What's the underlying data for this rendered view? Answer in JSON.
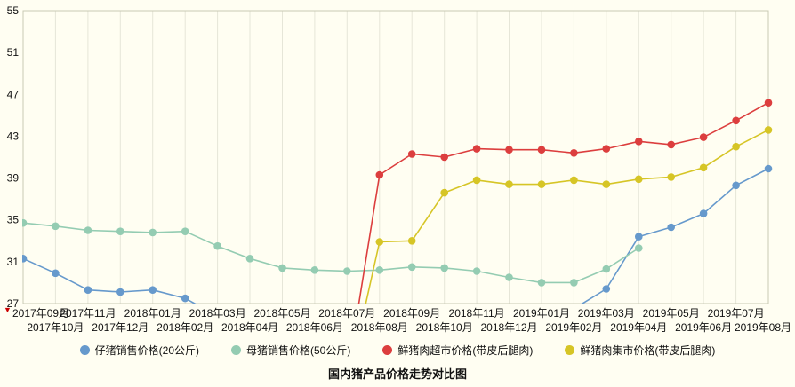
{
  "icons": {
    "origin_pointer": "▼"
  },
  "chart_data": {
    "type": "line",
    "title": "国内猪产品价格走势对比图",
    "x_labels": [
      "2017年09月",
      "2017年10月",
      "2017年11月",
      "2017年12月",
      "2018年01月",
      "2018年02月",
      "2018年03月",
      "2018年04月",
      "2018年05月",
      "2018年06月",
      "2018年07月",
      "2018年08月",
      "2018年09月",
      "2018年10月",
      "2018年11月",
      "2018年12月",
      "2019年01月",
      "2019年02月",
      "2019年03月",
      "2019年04月",
      "2019年05月",
      "2019年06月",
      "2019年07月",
      "2019年08月"
    ],
    "ylim": [
      27,
      55
    ],
    "yticks": [
      27,
      31,
      35,
      39,
      43,
      47,
      51,
      55
    ],
    "grid": "vertical-only",
    "legend_position": "bottom",
    "series": [
      {
        "name": "仔猪销售价格(20公斤)",
        "color": "#6699cc",
        "values": [
          31.3,
          29.9,
          28.3,
          28.1,
          28.3,
          27.5,
          25.8,
          null,
          null,
          null,
          null,
          null,
          null,
          null,
          null,
          null,
          null,
          26.5,
          28.4,
          33.4,
          34.3,
          35.6,
          38.3,
          39.9
        ]
      },
      {
        "name": "母猪销售价格(50公斤)",
        "color": "#94ccb2",
        "values": [
          34.7,
          34.4,
          34.0,
          33.9,
          33.8,
          33.9,
          32.5,
          31.3,
          30.4,
          30.2,
          30.1,
          30.2,
          30.5,
          30.4,
          30.1,
          29.5,
          29.0,
          29.0,
          30.3,
          32.3,
          null,
          null,
          null,
          null
        ]
      },
      {
        "name": "鲜猪肉超市价格(带皮后腿肉)",
        "color": "#dc3e3e",
        "values": [
          null,
          null,
          null,
          null,
          null,
          null,
          null,
          null,
          null,
          null,
          20.0,
          39.3,
          41.3,
          41.0,
          41.8,
          41.7,
          41.7,
          41.4,
          41.8,
          42.5,
          42.2,
          42.9,
          44.5,
          46.2
        ]
      },
      {
        "name": "鲜猪肉集市价格(带皮后腿肉)",
        "color": "#d6c526",
        "values": [
          null,
          null,
          null,
          null,
          null,
          null,
          null,
          null,
          null,
          null,
          19.0,
          32.9,
          33.0,
          37.6,
          38.8,
          38.4,
          38.4,
          38.8,
          38.4,
          38.9,
          39.1,
          40.0,
          42.0,
          43.6
        ]
      }
    ],
    "colors": {
      "background": "#fffef2",
      "grid": "#e6e6d8",
      "border": "#c9c9b4",
      "text": "#111111",
      "origin_marker": "#cc0000"
    }
  }
}
